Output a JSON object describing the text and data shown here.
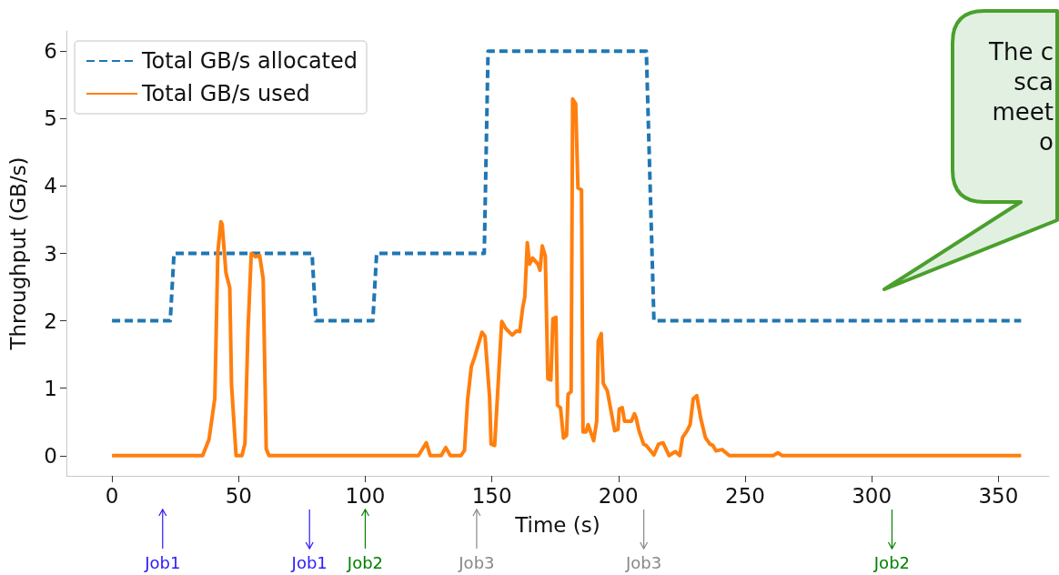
{
  "chart_data": {
    "type": "line",
    "xlabel": "Time (s)",
    "ylabel": "Throughput (GB/s)",
    "xlim": [
      -18,
      370
    ],
    "xticks": [
      0,
      50,
      100,
      150,
      200,
      250,
      300,
      350
    ],
    "ylim": [
      -0.3,
      6.3
    ],
    "yticks": [
      0,
      1,
      2,
      3,
      4,
      5,
      6
    ],
    "grid": false,
    "legend": "top left",
    "series": [
      {
        "name": "Total GB/s allocated",
        "color": "#1f77b4",
        "line_style": "dashed",
        "x": [
          0,
          23,
          24.5,
          79,
          80.5,
          103,
          104.5,
          147,
          148.5,
          211,
          214,
          359
        ],
        "values": [
          2,
          2,
          3,
          3,
          2,
          2,
          3,
          3,
          6,
          6,
          2,
          2
        ]
      },
      {
        "name": "Total GB/s used",
        "color": "#ff7f0e",
        "line_style": "solid",
        "x": [
          0,
          35.8,
          38.3,
          40.6,
          41.8,
          43,
          43.5,
          45,
          46.5,
          47.2,
          49,
          51.3,
          52.5,
          53.7,
          55,
          56.7,
          58.3,
          59.7,
          60.9,
          62,
          121,
          124.1,
          125.7,
          130,
          131.8,
          133.6,
          137.8,
          139.2,
          140.4,
          141.9,
          143.1,
          146.1,
          147.3,
          149.1,
          149.7,
          151.1,
          153.9,
          155.6,
          158,
          159.8,
          161,
          162.2,
          163,
          164,
          164.9,
          166.1,
          168.2,
          169,
          169.9,
          171.1,
          172.1,
          173.3,
          174.1,
          175.3,
          175.9,
          177.1,
          178.3,
          179.5,
          180.1,
          181.3,
          181.9,
          183.1,
          184,
          185.4,
          186,
          187.2,
          188,
          190.2,
          191.4,
          192,
          193.2,
          194,
          195.6,
          198.5,
          199.8,
          200.3,
          201.5,
          202.4,
          205.1,
          206.3,
          206.9,
          208.1,
          209.9,
          211,
          214,
          215.8,
          217.6,
          220,
          222.4,
          224.2,
          225.3,
          227.1,
          228.3,
          229.5,
          230.9,
          232.5,
          234.3,
          236.1,
          237.3,
          238.5,
          240.9,
          243.8,
          261.1,
          262.9,
          264.7,
          359
        ],
        "values": [
          0,
          0,
          0.24,
          0.85,
          3.02,
          3.47,
          3.43,
          2.71,
          2.49,
          1.05,
          0,
          0,
          0.18,
          1.86,
          3.0,
          2.95,
          2.97,
          2.62,
          0.1,
          0,
          0,
          0.19,
          0,
          0,
          0.12,
          0,
          0,
          0.08,
          0.82,
          1.32,
          1.45,
          1.83,
          1.77,
          0.87,
          0.17,
          0.15,
          1.99,
          1.88,
          1.79,
          1.85,
          1.84,
          2.2,
          2.35,
          3.16,
          2.84,
          2.93,
          2.84,
          2.75,
          3.11,
          2.96,
          1.14,
          1.12,
          2.03,
          2.05,
          0.75,
          0.71,
          0.26,
          0.3,
          0.91,
          0.95,
          5.29,
          5.22,
          3.97,
          3.94,
          0.35,
          0.35,
          0.46,
          0.22,
          0.51,
          1.7,
          1.81,
          1.07,
          0.96,
          0.37,
          0.39,
          0.69,
          0.71,
          0.51,
          0.51,
          0.62,
          0.57,
          0.37,
          0.17,
          0.15,
          0.01,
          0.17,
          0.19,
          0,
          0.06,
          0,
          0.27,
          0.37,
          0.46,
          0.84,
          0.89,
          0.55,
          0.27,
          0.17,
          0.15,
          0.07,
          0.09,
          0,
          0,
          0.04,
          0,
          0
        ]
      }
    ],
    "annotations": [
      "Job1",
      "Job1",
      "Job2",
      "Job3",
      "Job3",
      "Job2",
      "The c",
      "sca",
      "meet",
      "o"
    ]
  }
}
